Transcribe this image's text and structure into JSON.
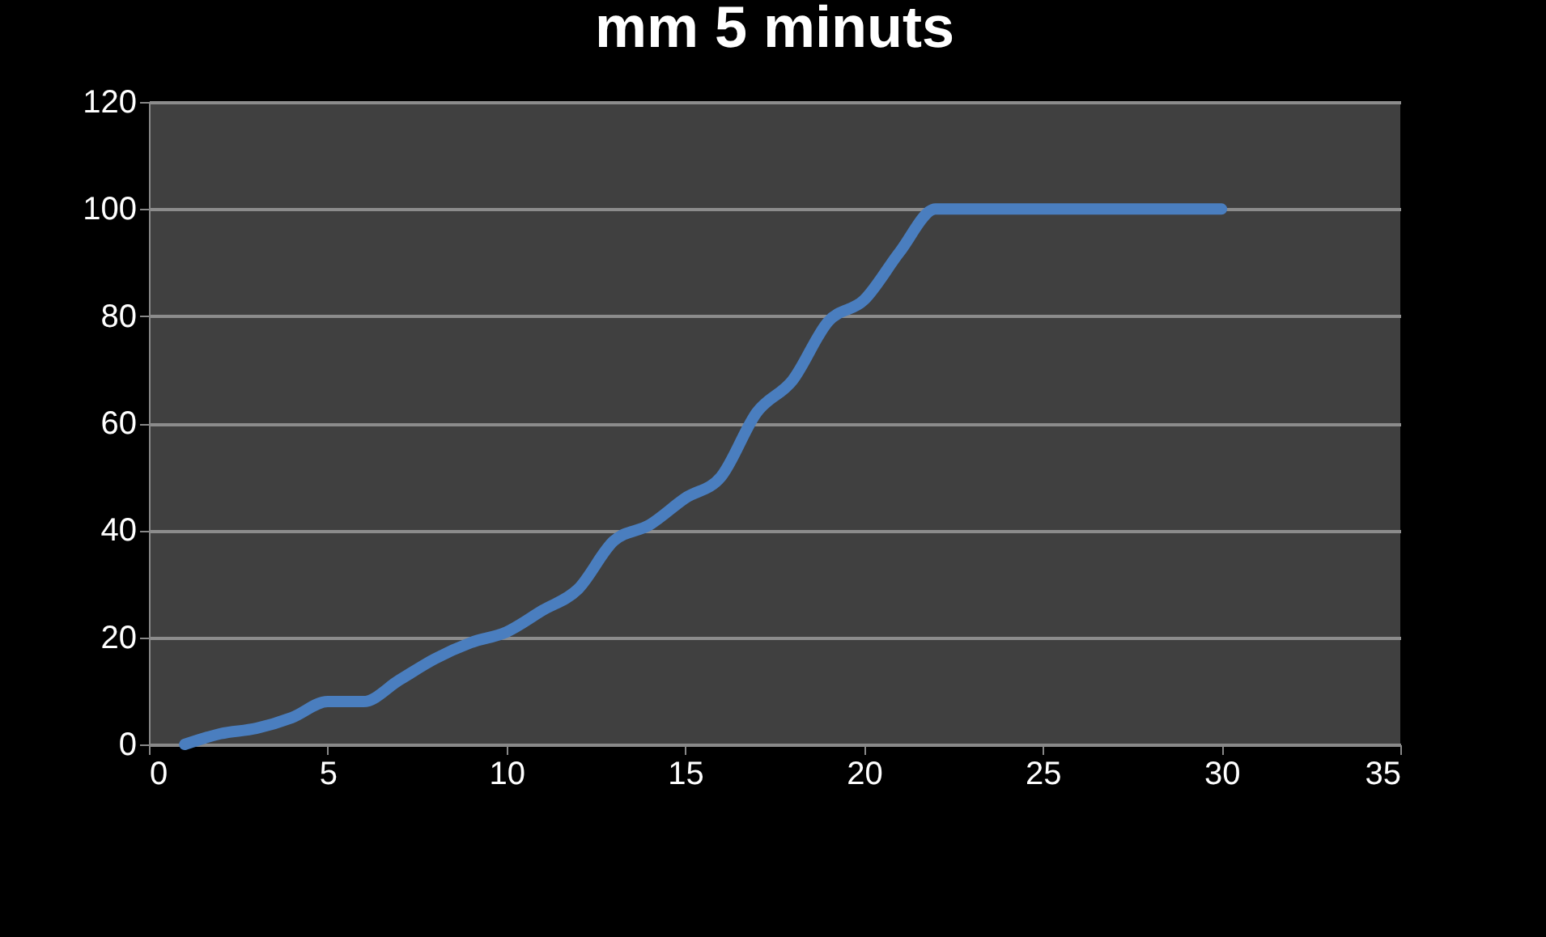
{
  "chart_data": {
    "type": "line",
    "title": "mm  5 minuts",
    "x": [
      1,
      2,
      3,
      4,
      5,
      6,
      7,
      8,
      9,
      10,
      11,
      12,
      13,
      14,
      15,
      16,
      17,
      18,
      19,
      20,
      21,
      22,
      23,
      24,
      25,
      26,
      27,
      28,
      29,
      30
    ],
    "series": [
      {
        "color": "#4a7ebf",
        "values": [
          0,
          2,
          3,
          5,
          8,
          8,
          12,
          16,
          19,
          21,
          25,
          29,
          38,
          41,
          46,
          50,
          62,
          68,
          79,
          83,
          92,
          100,
          100,
          100,
          100,
          100,
          100,
          100,
          100,
          100
        ]
      }
    ],
    "xlim": [
      0,
      35
    ],
    "xticks": [
      0,
      5,
      10,
      15,
      20,
      25,
      30,
      35
    ],
    "ylim": [
      0,
      120
    ],
    "yticks": [
      0,
      20,
      40,
      60,
      80,
      100,
      120
    ],
    "grid": "y",
    "legend": false,
    "marker": "none",
    "line_style": "solid"
  }
}
